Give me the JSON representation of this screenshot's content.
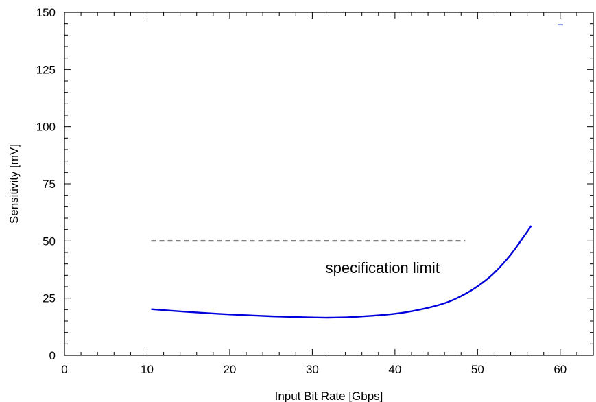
{
  "chart_data": {
    "type": "line",
    "title": "",
    "xlabel": "Input Bit Rate [Gbps]",
    "ylabel": "Sensitivity [mV]",
    "xlim": [
      0,
      64
    ],
    "ylim": [
      0,
      150
    ],
    "x_ticks": [
      0,
      10,
      20,
      30,
      40,
      50,
      60
    ],
    "y_ticks": [
      0,
      25,
      50,
      75,
      100,
      125,
      150
    ],
    "grid": false,
    "series": [
      {
        "name": "",
        "color": "#0000dd",
        "style": "solid",
        "x": [
          10.5,
          15,
          20,
          25,
          30,
          32,
          35,
          40,
          43,
          46,
          48,
          50,
          52,
          54,
          55.5,
          56.5
        ],
        "y": [
          20.2,
          19.0,
          17.9,
          17.1,
          16.6,
          16.5,
          16.8,
          18.2,
          20.0,
          22.8,
          25.9,
          30.2,
          36.0,
          44.0,
          51.5,
          56.7
        ]
      },
      {
        "name": "",
        "color": "#000000",
        "style": "dashed",
        "x": [
          10.5,
          48.5
        ],
        "y": [
          50,
          50
        ]
      }
    ],
    "stray_mark": {
      "x": 60,
      "y": 144.5,
      "color": "#0000dd"
    },
    "annotations": [
      {
        "text": "specification limit",
        "x": 38.5,
        "y": 36
      }
    ]
  }
}
